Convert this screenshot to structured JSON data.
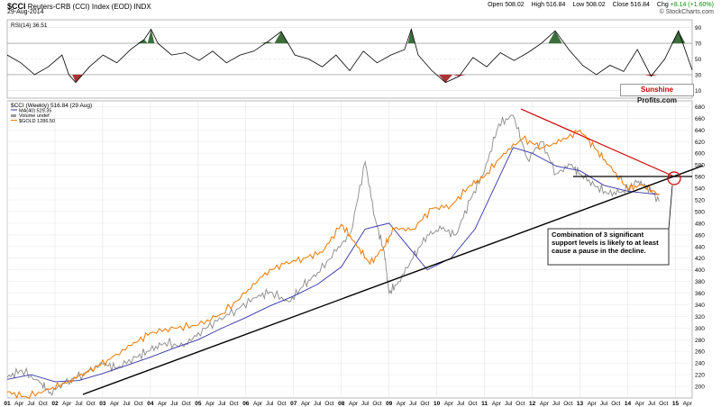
{
  "header": {
    "symbol": "$CCI",
    "name": "Reuters-CRB (CCI) Index (EOD) INDX",
    "date": "29-Aug-2014",
    "open_label": "Open",
    "open": "508.02",
    "high_label": "High",
    "high": "516.84",
    "low_label": "Low",
    "low": "508.02",
    "close_label": "Close",
    "close": "516.84",
    "chg_label": "Chg",
    "chg": "+8.14 (+1.60%)",
    "copyright": "© StockCharts.com"
  },
  "rsi_legend": "RSI(14) 36.51",
  "main_legend": {
    "price": "$CCI (Weekly) 516.84 (29 Aug)",
    "ma": "MA(40) 529.35",
    "volume": "Volume undef",
    "gold": "$GOLD 1286.50"
  },
  "brand": {
    "part1": "Sunshine",
    "part2": "Profits.com"
  },
  "annotation": "Combination of 3 significant support levels is likely to at least cause a pause in the decline.",
  "colors": {
    "price": "#8a8a8a",
    "ma": "#3333aa",
    "gold": "#ee7700",
    "trend_red": "#cc0000",
    "trend_black": "#000000",
    "rsi_fill_high": "#3c6e3c",
    "rsi_fill_low": "#aa3333"
  },
  "chart_data": [
    {
      "type": "line",
      "title": "RSI(14) 36.51",
      "ylim": [
        0,
        100
      ],
      "yticks": [
        10,
        30,
        50,
        70,
        90
      ],
      "series": [
        {
          "name": "RSI(14)",
          "x": [
            0,
            2,
            4,
            6,
            8,
            9,
            10,
            12,
            14,
            16,
            18,
            20,
            21,
            22,
            24,
            26,
            28,
            30,
            32,
            34,
            36,
            38,
            40,
            42,
            44,
            46,
            48,
            50,
            52,
            54,
            56,
            58,
            59,
            60,
            62,
            64,
            66,
            68,
            70,
            72,
            74,
            76,
            78,
            80,
            82,
            84,
            86,
            88,
            90,
            92,
            94,
            96,
            98,
            100
          ],
          "values": [
            55,
            45,
            30,
            40,
            55,
            30,
            20,
            40,
            55,
            45,
            62,
            75,
            88,
            70,
            55,
            58,
            48,
            60,
            45,
            55,
            60,
            72,
            85,
            55,
            50,
            40,
            55,
            35,
            60,
            45,
            55,
            62,
            88,
            55,
            35,
            20,
            28,
            52,
            40,
            58,
            48,
            58,
            70,
            86,
            62,
            42,
            30,
            42,
            34,
            62,
            28,
            50,
            86,
            36
          ]
        }
      ]
    },
    {
      "type": "line",
      "title": "$CCI (Weekly) 516.84 (29 Aug)",
      "xlabel": "",
      "ylabel": "",
      "ylim": [
        180,
        690
      ],
      "yticks": [
        200,
        220,
        240,
        260,
        280,
        300,
        320,
        340,
        360,
        380,
        400,
        420,
        440,
        460,
        480,
        500,
        520,
        540,
        560,
        580,
        600,
        620,
        640,
        660,
        680
      ],
      "x_year_labels": [
        "01",
        "02",
        "03",
        "04",
        "05",
        "06",
        "07",
        "08",
        "09",
        "10",
        "11",
        "12",
        "13",
        "14",
        "15"
      ],
      "x_month_labels": [
        "Apr",
        "Jul",
        "Oct"
      ],
      "series": [
        {
          "name": "$CCI",
          "x": [
            2001.0,
            2001.3,
            2001.7,
            2001.9,
            2002.2,
            2002.6,
            2003.0,
            2003.3,
            2003.7,
            2004.0,
            2004.3,
            2004.7,
            2005.0,
            2005.4,
            2005.8,
            2006.2,
            2006.5,
            2006.9,
            2007.2,
            2007.5,
            2007.9,
            2008.2,
            2008.5,
            2008.7,
            2008.9,
            2009.0,
            2009.2,
            2009.5,
            2009.8,
            2010.1,
            2010.4,
            2010.7,
            2011.0,
            2011.3,
            2011.6,
            2011.9,
            2012.2,
            2012.5,
            2012.8,
            2013.0,
            2013.3,
            2013.6,
            2013.9,
            2014.2,
            2014.4,
            2014.66
          ],
          "values": [
            215,
            228,
            205,
            190,
            205,
            222,
            238,
            232,
            250,
            262,
            275,
            268,
            292,
            312,
            332,
            352,
            362,
            345,
            372,
            395,
            432,
            465,
            585,
            490,
            430,
            360,
            380,
            420,
            460,
            470,
            460,
            520,
            570,
            650,
            665,
            590,
            620,
            565,
            580,
            565,
            545,
            530,
            535,
            550,
            545,
            517
          ]
        },
        {
          "name": "MA(40)",
          "x": [
            2001.0,
            2001.5,
            2002.0,
            2002.5,
            2003.0,
            2003.5,
            2004.0,
            2004.5,
            2005.0,
            2005.5,
            2006.0,
            2006.5,
            2007.0,
            2007.5,
            2008.0,
            2008.5,
            2009.0,
            2009.4,
            2009.8,
            2010.3,
            2010.8,
            2011.2,
            2011.6,
            2012.0,
            2012.5,
            2013.0,
            2013.5,
            2014.0,
            2014.66
          ],
          "values": [
            212,
            220,
            208,
            210,
            222,
            236,
            250,
            266,
            280,
            300,
            318,
            338,
            355,
            375,
            405,
            470,
            480,
            440,
            400,
            420,
            470,
            540,
            610,
            600,
            578,
            570,
            545,
            535,
            529
          ]
        },
        {
          "name": "$GOLD",
          "x": [
            2001.0,
            2001.4,
            2001.9,
            2002.3,
            2002.7,
            2003.1,
            2003.6,
            2004.0,
            2004.5,
            2005.0,
            2005.5,
            2006.0,
            2006.4,
            2006.8,
            2007.2,
            2007.6,
            2008.0,
            2008.3,
            2008.6,
            2008.9,
            2009.1,
            2009.5,
            2009.9,
            2010.3,
            2010.7,
            2011.0,
            2011.4,
            2011.8,
            2012.2,
            2012.6,
            2013.0,
            2013.3,
            2013.6,
            2014.0,
            2014.3,
            2014.66
          ],
          "values": [
            190,
            182,
            195,
            210,
            225,
            245,
            270,
            292,
            300,
            305,
            325,
            360,
            395,
            410,
            420,
            430,
            478,
            445,
            410,
            440,
            470,
            470,
            505,
            510,
            545,
            560,
            600,
            625,
            610,
            620,
            640,
            610,
            580,
            540,
            545,
            530
          ]
        }
      ]
    }
  ]
}
